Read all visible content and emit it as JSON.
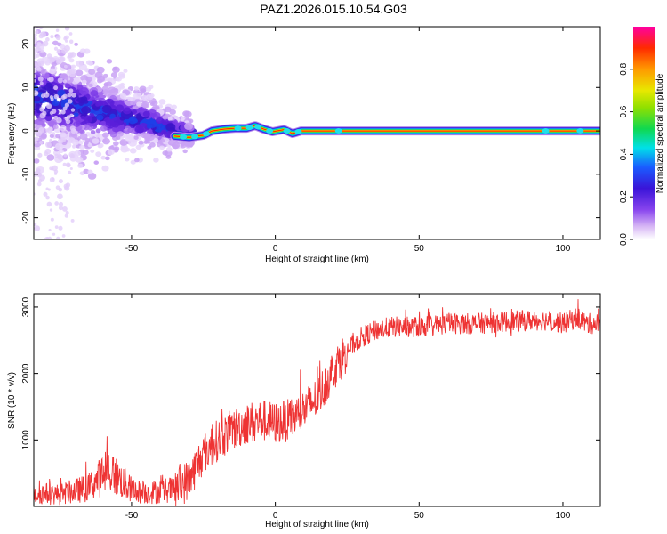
{
  "page": {
    "title": "PAZ1.2026.015.10.54.G03"
  },
  "colors": {
    "snr_line": "#ee3333",
    "axis": "#000000",
    "background": "#ffffff"
  },
  "chart_data": [
    {
      "type": "heatmap",
      "title": "PAZ1.2026.015.10.54.G03",
      "xlabel": "Height of straight line (km)",
      "ylabel": "Frequency (Hz)",
      "xlim": [
        -84,
        113
      ],
      "ylim": [
        -25,
        24
      ],
      "xticks": [
        -50,
        0,
        50,
        100
      ],
      "xtick_labels": [
        "-50",
        "0",
        "50",
        "100"
      ],
      "yticks": [
        -20,
        -10,
        0,
        10,
        20
      ],
      "ytick_labels": [
        "-20",
        "-10",
        "0",
        "10",
        "20"
      ],
      "colorbar": {
        "label": "Normalized spectral amplitude",
        "range": [
          0,
          1
        ],
        "ticks": [
          0.0,
          0.2,
          0.4,
          0.6,
          0.8
        ],
        "tick_labels": [
          "0.0",
          "0.2",
          "0.4",
          "0.6",
          "0.8"
        ]
      },
      "ridge": {
        "description": "dominant frequency vs height",
        "points": [
          [
            -35,
            -1.2
          ],
          [
            -30,
            -1.5
          ],
          [
            -25,
            -1.0
          ],
          [
            -22,
            0.0
          ],
          [
            -18,
            0.4
          ],
          [
            -14,
            0.6
          ],
          [
            -10,
            0.6
          ],
          [
            -7,
            1.2
          ],
          [
            -4,
            0.4
          ],
          [
            -1,
            -0.2
          ],
          [
            3,
            0.3
          ],
          [
            6,
            -0.6
          ],
          [
            9,
            0.0
          ],
          [
            15,
            0.0
          ],
          [
            113,
            0.0
          ]
        ]
      },
      "scatter_region": {
        "x_range": [
          -84,
          -33
        ],
        "freq_center_start": 8,
        "freq_center_end": 0,
        "freq_spread": 15
      }
    },
    {
      "type": "line",
      "xlabel": "Height of straight line (km)",
      "ylabel": "SNR (10 * v/v)",
      "xlim": [
        -84,
        113
      ],
      "ylim": [
        0,
        3200
      ],
      "xticks": [
        -50,
        0,
        50,
        100
      ],
      "xtick_labels": [
        "-50",
        "0",
        "50",
        "100"
      ],
      "yticks": [
        1000,
        2000,
        3000
      ],
      "ytick_labels": [
        "1000",
        "2000",
        "3000"
      ],
      "series": [
        {
          "name": "SNR",
          "trend_x": [
            -84,
            -75,
            -65,
            -58,
            -50,
            -45,
            -35,
            -30,
            -25,
            -20,
            -15,
            -10,
            -5,
            0,
            5,
            10,
            15,
            20,
            25,
            30,
            35,
            40,
            50,
            60,
            70,
            80,
            90,
            95,
            100,
            105,
            108,
            113
          ],
          "trend_y": [
            200,
            180,
            280,
            550,
            250,
            200,
            260,
            400,
            800,
            1000,
            1150,
            1250,
            1300,
            1250,
            1300,
            1450,
            1650,
            2050,
            2350,
            2550,
            2650,
            2700,
            2700,
            2750,
            2750,
            2780,
            2800,
            2800,
            2750,
            2850,
            2750,
            2750
          ]
        }
      ]
    }
  ]
}
